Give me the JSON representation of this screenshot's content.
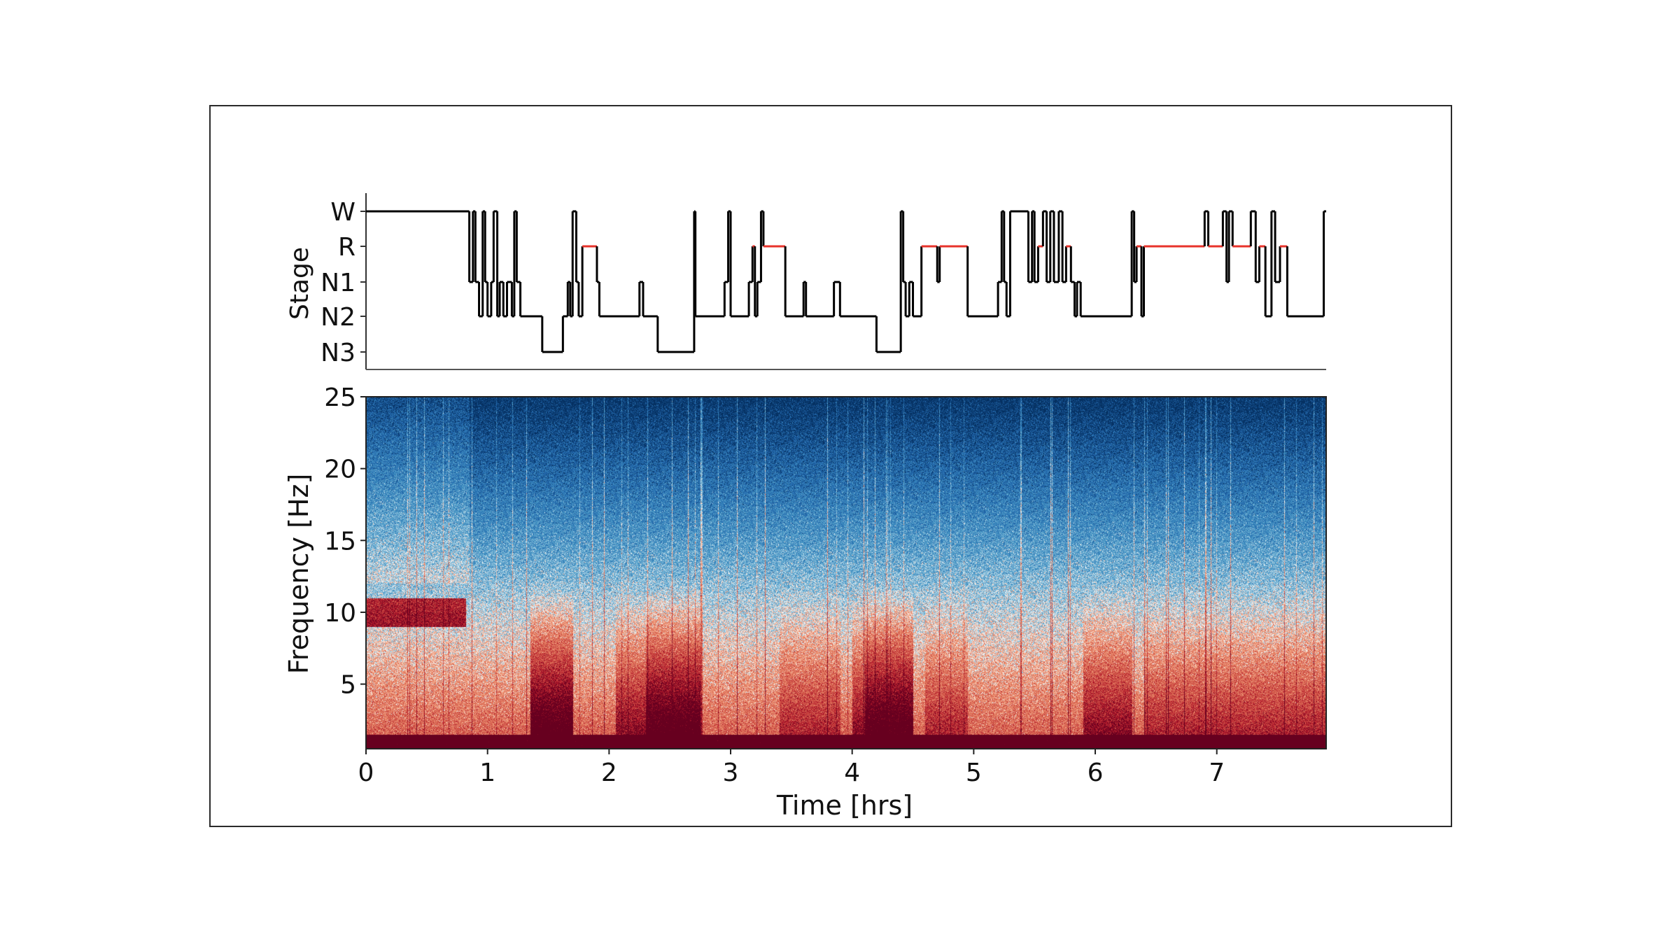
{
  "chart_data": [
    {
      "type": "line",
      "ylabel": "Stage",
      "stage_labels": [
        "W",
        "R",
        "N1",
        "N2",
        "N3"
      ],
      "xlim": [
        0,
        7.9
      ],
      "line_color": "#000000",
      "rem_color": "#e8332b",
      "hypnogram": [
        [
          0.0,
          "W"
        ],
        [
          0.85,
          "N1"
        ],
        [
          0.88,
          "W"
        ],
        [
          0.9,
          "N1"
        ],
        [
          0.93,
          "N2"
        ],
        [
          0.96,
          "W"
        ],
        [
          0.98,
          "N1"
        ],
        [
          1.0,
          "N2"
        ],
        [
          1.03,
          "N1"
        ],
        [
          1.05,
          "W"
        ],
        [
          1.08,
          "N2"
        ],
        [
          1.1,
          "N1"
        ],
        [
          1.13,
          "N2"
        ],
        [
          1.16,
          "N1"
        ],
        [
          1.2,
          "N2"
        ],
        [
          1.22,
          "W"
        ],
        [
          1.24,
          "N1"
        ],
        [
          1.27,
          "N2"
        ],
        [
          1.45,
          "N3"
        ],
        [
          1.62,
          "N2"
        ],
        [
          1.66,
          "N1"
        ],
        [
          1.68,
          "N2"
        ],
        [
          1.7,
          "W"
        ],
        [
          1.73,
          "N1"
        ],
        [
          1.75,
          "N2"
        ],
        [
          1.78,
          "R"
        ],
        [
          1.9,
          "N1"
        ],
        [
          1.92,
          "N2"
        ],
        [
          2.25,
          "N1"
        ],
        [
          2.28,
          "N2"
        ],
        [
          2.4,
          "N3"
        ],
        [
          2.7,
          "W"
        ],
        [
          2.71,
          "N2"
        ],
        [
          2.95,
          "N1"
        ],
        [
          2.98,
          "W"
        ],
        [
          3.0,
          "N2"
        ],
        [
          3.15,
          "N1"
        ],
        [
          3.18,
          "R"
        ],
        [
          3.2,
          "N2"
        ],
        [
          3.22,
          "N1"
        ],
        [
          3.25,
          "W"
        ],
        [
          3.27,
          "R"
        ],
        [
          3.45,
          "N2"
        ],
        [
          3.6,
          "N1"
        ],
        [
          3.62,
          "N2"
        ],
        [
          3.85,
          "N1"
        ],
        [
          3.9,
          "N2"
        ],
        [
          4.2,
          "N3"
        ],
        [
          4.4,
          "W"
        ],
        [
          4.42,
          "N1"
        ],
        [
          4.44,
          "N2"
        ],
        [
          4.47,
          "N1"
        ],
        [
          4.5,
          "N2"
        ],
        [
          4.57,
          "R"
        ],
        [
          4.7,
          "N1"
        ],
        [
          4.72,
          "R"
        ],
        [
          4.95,
          "N2"
        ],
        [
          5.2,
          "N1"
        ],
        [
          5.23,
          "W"
        ],
        [
          5.25,
          "N1"
        ],
        [
          5.27,
          "N2"
        ],
        [
          5.3,
          "W"
        ],
        [
          5.45,
          "N1"
        ],
        [
          5.48,
          "W"
        ],
        [
          5.5,
          "N1"
        ],
        [
          5.53,
          "R"
        ],
        [
          5.57,
          "W"
        ],
        [
          5.6,
          "N1"
        ],
        [
          5.63,
          "W"
        ],
        [
          5.66,
          "N1"
        ],
        [
          5.7,
          "W"
        ],
        [
          5.73,
          "N1"
        ],
        [
          5.76,
          "R"
        ],
        [
          5.8,
          "N1"
        ],
        [
          5.83,
          "N2"
        ],
        [
          5.85,
          "N1"
        ],
        [
          5.88,
          "N2"
        ],
        [
          6.3,
          "W"
        ],
        [
          6.32,
          "N1"
        ],
        [
          6.34,
          "R"
        ],
        [
          6.38,
          "N2"
        ],
        [
          6.4,
          "R"
        ],
        [
          6.9,
          "W"
        ],
        [
          6.93,
          "R"
        ],
        [
          7.05,
          "W"
        ],
        [
          7.08,
          "N1"
        ],
        [
          7.1,
          "W"
        ],
        [
          7.13,
          "R"
        ],
        [
          7.28,
          "W"
        ],
        [
          7.32,
          "N1"
        ],
        [
          7.35,
          "R"
        ],
        [
          7.4,
          "N2"
        ],
        [
          7.45,
          "W"
        ],
        [
          7.48,
          "N1"
        ],
        [
          7.52,
          "R"
        ],
        [
          7.58,
          "N2"
        ],
        [
          7.88,
          "W"
        ]
      ]
    },
    {
      "type": "heatmap",
      "xlabel": "Time [hrs]",
      "ylabel": "Frequency [Hz]",
      "xlim": [
        0,
        7.9
      ],
      "ylim": [
        0.5,
        25
      ],
      "xticks": [
        "0",
        "1",
        "2",
        "3",
        "4",
        "5",
        "6",
        "7"
      ],
      "yticks": [
        "5",
        "10",
        "15",
        "20",
        "25"
      ],
      "colormap": "RdBu_r",
      "deep_sleep_bands_hrs": [
        [
          1.4,
          1.65
        ],
        [
          2.35,
          2.7
        ],
        [
          4.15,
          4.45
        ]
      ],
      "alpha_band_hz": [
        9,
        11
      ],
      "alpha_band_hrs": [
        0,
        0.82
      ]
    }
  ]
}
